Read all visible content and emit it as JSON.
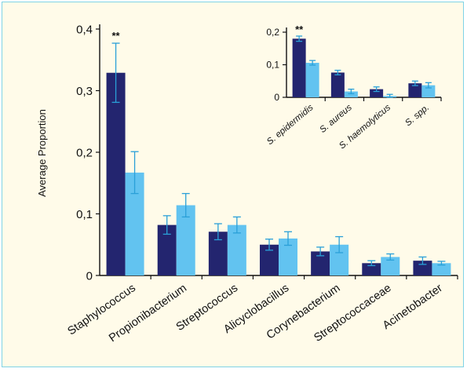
{
  "colors": {
    "series_dark": "#23256f",
    "series_light": "#62c3f0",
    "error_bar": "#2aa0d8",
    "axis": "#111111",
    "background": "#fffbe9",
    "frame": "#7fd3e6"
  },
  "chart_data": [
    {
      "type": "bar",
      "ylabel": "Average Proportion",
      "ylim": [
        0,
        0.4
      ],
      "yticks": [
        "0",
        "0,1",
        "0,2",
        "0,3",
        "0,4"
      ],
      "categories": [
        "Staphylococcus",
        "Propionibacterium",
        "Streptococcus",
        "Alicyclobacillus",
        "Corynebacterium",
        "Streptococcaceae",
        "Acinetobacter"
      ],
      "series": [
        {
          "values": [
            0.329,
            0.082,
            0.071,
            0.05,
            0.039,
            0.02,
            0.024
          ],
          "errors": [
            0.048,
            0.015,
            0.013,
            0.009,
            0.007,
            0.004,
            0.006
          ]
        },
        {
          "values": [
            0.167,
            0.114,
            0.082,
            0.06,
            0.05,
            0.03,
            0.02
          ],
          "errors": [
            0.034,
            0.019,
            0.013,
            0.011,
            0.013,
            0.005,
            0.003
          ]
        }
      ],
      "annotations": [
        {
          "category": "Staphylococcus",
          "text": "**"
        }
      ],
      "grid": false
    },
    {
      "type": "bar",
      "ylim": [
        0,
        0.2
      ],
      "yticks": [
        "0",
        "0,1",
        "0,2"
      ],
      "categories": [
        "S. epidermidis",
        "S. aureus",
        "S. haemolyticus",
        "S. spp."
      ],
      "series": [
        {
          "values": [
            0.18,
            0.076,
            0.025,
            0.043
          ],
          "errors": [
            0.008,
            0.007,
            0.007,
            0.007
          ]
        },
        {
          "values": [
            0.106,
            0.018,
            0.004,
            0.037
          ],
          "errors": [
            0.007,
            0.007,
            0.005,
            0.008
          ]
        }
      ],
      "annotations": [
        {
          "category": "S. epidermidis",
          "text": "**"
        }
      ],
      "grid": false
    }
  ]
}
